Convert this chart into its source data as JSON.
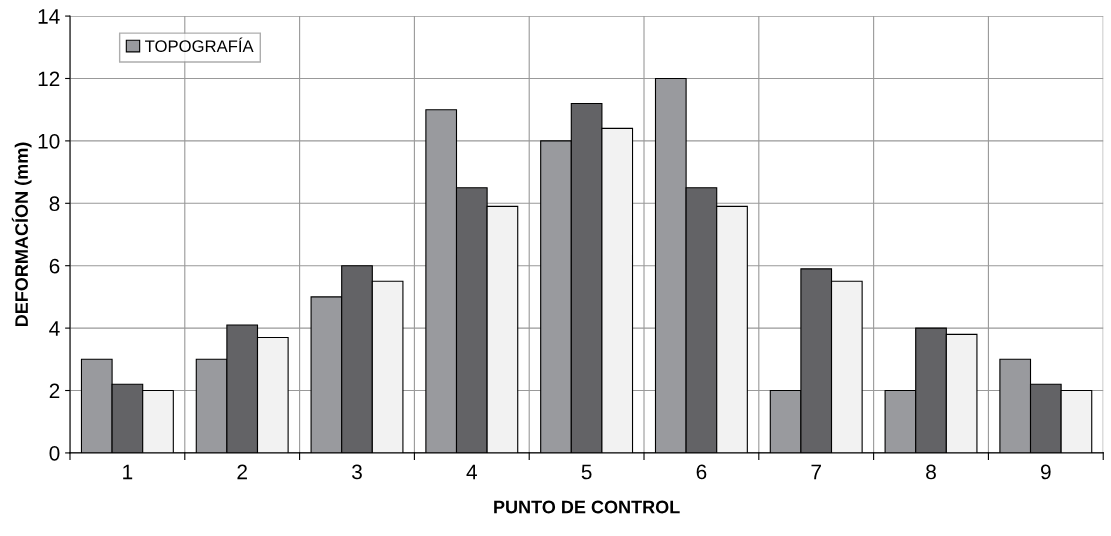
{
  "chart_data": {
    "type": "bar",
    "xlabel": "PUNTO DE CONTROL",
    "ylabel": "DEFORMACÍON (mm)",
    "categories": [
      "1",
      "2",
      "3",
      "4",
      "5",
      "6",
      "7",
      "8",
      "9"
    ],
    "series": [
      {
        "name": "TOPOGRAFÍA",
        "color": "#999a9e",
        "values": [
          3,
          3,
          5,
          11,
          10,
          12,
          2,
          2,
          3
        ]
      },
      {
        "color": "#636366",
        "values": [
          2.2,
          4.1,
          6.0,
          8.5,
          11.2,
          8.5,
          5.9,
          4.0,
          2.2
        ]
      },
      {
        "color": "#f2f2f2",
        "values": [
          2.0,
          3.7,
          5.5,
          7.9,
          10.4,
          7.9,
          5.5,
          3.8,
          2.0
        ]
      }
    ],
    "ylim": [
      0,
      14
    ],
    "yticks": [
      0,
      2,
      4,
      6,
      8,
      10,
      12,
      14
    ],
    "grid": true,
    "legend": "top left"
  }
}
